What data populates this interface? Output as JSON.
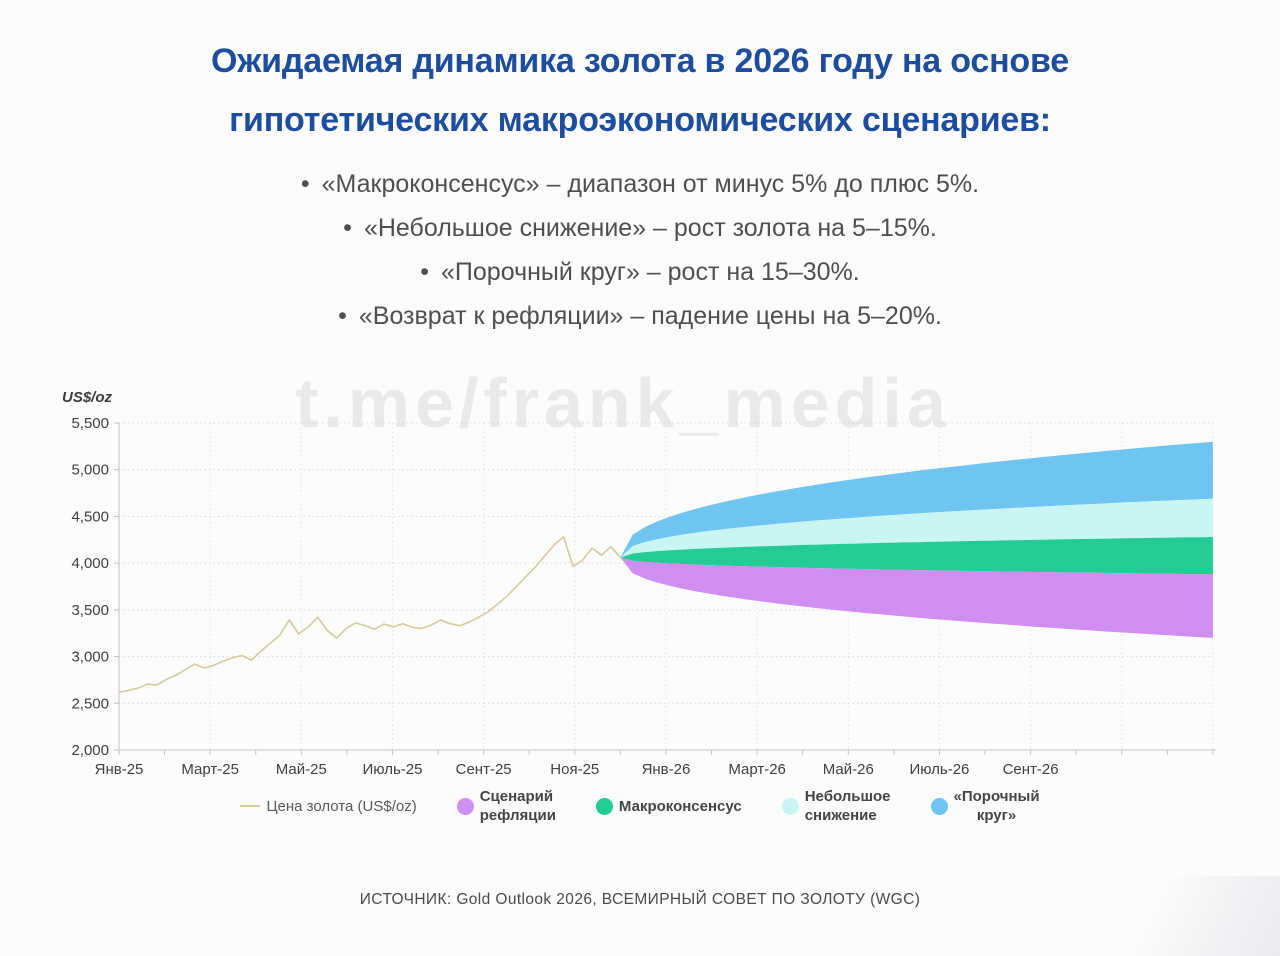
{
  "page": {
    "title_line1": "Ожидаемая динамика золота в 2026 году на основе",
    "title_line2": "гипотетических макроэкономических сценариев:",
    "bullets": [
      "«Макроконсенсус» – диапазон от минус 5% до плюс 5%.",
      "«Небольшое снижение» – рост золота на 5–15%.",
      "«Порочный круг» – рост на 15–30%.",
      "«Возврат к рефляции» – падение цены на 5–20%."
    ],
    "watermark": "t.me/frank_media",
    "source": "ИСТОЧНИК: Gold Outlook 2026, ВСЕМИРНЫЙ СОВЕТ ПО ЗОЛОТУ (WGC)"
  },
  "colors": {
    "title": "#1d4d9f",
    "text": "#4f4f4f",
    "gold_line": "#d8ca9b",
    "reflation": "#cf8ef0",
    "macro_consensus": "#25cb94",
    "small_decline": "#c9f6f2",
    "vicious_circle": "#70c4f2",
    "watermark": "#e9e9e9",
    "grid_h": "#d8d8d8",
    "grid_v": "#e3e3e3",
    "axis": "#c4c4c4",
    "tick_text": "#404040"
  },
  "chart_data": {
    "type": "line",
    "title": "Ожидаемая динамика золота в 2026 году",
    "ylabel": "US$/oz",
    "ylim": [
      2000,
      5500
    ],
    "y_ticks": [
      5500,
      5000,
      4500,
      4000,
      3500,
      3000,
      2500,
      2000
    ],
    "x_range_months": [
      0,
      24
    ],
    "x_tick_labels": [
      {
        "m": 0,
        "label": "Янв-25"
      },
      {
        "m": 2,
        "label": "Март-25"
      },
      {
        "m": 4,
        "label": "Май-25"
      },
      {
        "m": 6,
        "label": "Июль-25"
      },
      {
        "m": 8,
        "label": "Сент-25"
      },
      {
        "m": 10,
        "label": "Ноя-25"
      },
      {
        "m": 12,
        "label": "Янв-26"
      },
      {
        "m": 14,
        "label": "Март-26"
      },
      {
        "m": 16,
        "label": "Май-26"
      },
      {
        "m": 18,
        "label": "Июль-26"
      },
      {
        "m": 20,
        "label": "Сент-26"
      }
    ],
    "grid": "dotted, horizontal every 500 and vertical every 2 months",
    "history": {
      "name": "Цена золота (US$/oz)",
      "start_month": 0,
      "end_month": 11,
      "values": [
        2620,
        2638,
        2662,
        2705,
        2695,
        2755,
        2800,
        2858,
        2920,
        2878,
        2905,
        2950,
        2988,
        3012,
        2962,
        3058,
        3142,
        3230,
        3392,
        3242,
        3318,
        3420,
        3282,
        3198,
        3298,
        3360,
        3332,
        3292,
        3348,
        3318,
        3352,
        3312,
        3302,
        3338,
        3392,
        3352,
        3330,
        3368,
        3420,
        3478,
        3560,
        3645,
        3748,
        3855,
        3958,
        4078,
        4195,
        4282,
        3965,
        4030,
        4160,
        4085,
        4175,
        4060
      ]
    },
    "forecast": {
      "start_month": 11,
      "end_month": 24,
      "start_value": 4060,
      "curve_exponent": 0.42,
      "bands": [
        {
          "id": "vicious-circle",
          "label": "«Порочный круг»",
          "color_key": "vicious_circle",
          "change": "рост на 15–30%",
          "end_top": 5300,
          "end_bottom": 4690
        },
        {
          "id": "small-decline",
          "label": "Небольшое снижение",
          "color_key": "small_decline",
          "change": "рост золота на 5–15%",
          "end_top": 4690,
          "end_bottom": 4280
        },
        {
          "id": "macro-consensus",
          "label": "Макроконсенсус",
          "color_key": "macro_consensus",
          "change": "диапазон от минус 5% до плюс 5%",
          "end_top": 4280,
          "end_bottom": 3880
        },
        {
          "id": "reflation",
          "label": "Сценарий рефляции",
          "color_key": "reflation",
          "change": "падение цены на 5–20%",
          "end_top": 3880,
          "end_bottom": 3200
        }
      ]
    }
  },
  "legend": {
    "items": [
      {
        "id": "gold-price",
        "swatch": "line",
        "color_key": "gold_line",
        "bold": false,
        "align": "left",
        "lines": [
          "Цена золота (US$/oz)"
        ]
      },
      {
        "id": "reflation",
        "swatch": "circle",
        "color_key": "reflation",
        "bold": true,
        "align": "left",
        "lines": [
          "Сценарий",
          "рефляции"
        ]
      },
      {
        "id": "macro-consensus",
        "swatch": "circle",
        "color_key": "macro_consensus",
        "bold": true,
        "align": "left",
        "lines": [
          "Макроконсенсус"
        ]
      },
      {
        "id": "small-decline",
        "swatch": "circle",
        "color_key": "small_decline",
        "bold": true,
        "align": "left",
        "lines": [
          "Небольшое",
          "снижение"
        ]
      },
      {
        "id": "vicious-circle",
        "swatch": "circle",
        "color_key": "vicious_circle",
        "bold": true,
        "align": "center",
        "lines": [
          "«Порочный",
          "круг»"
        ]
      }
    ]
  }
}
